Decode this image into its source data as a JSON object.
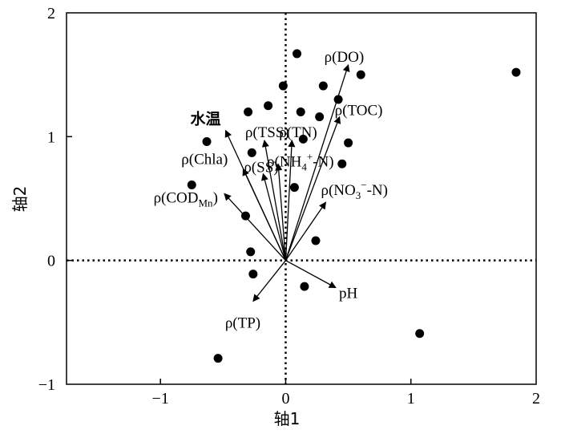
{
  "chart_data": {
    "type": "scatter",
    "title": "",
    "xlabel": "轴1",
    "ylabel": "轴2",
    "xlim": [
      -1.75,
      2.0
    ],
    "ylim": [
      -1.0,
      2.0
    ],
    "x_ticks": [
      -1,
      0,
      1,
      2
    ],
    "y_ticks": [
      -1,
      0,
      1,
      2
    ],
    "x_tick_labels": [
      "−1",
      "0",
      "1",
      "2"
    ],
    "y_tick_labels": [
      "−1",
      "0",
      "1",
      "2"
    ],
    "grid": false,
    "reference_lines": [
      "x=0 dotted",
      "y=0 dotted"
    ],
    "points": [
      {
        "x": 0.09,
        "y": 1.67
      },
      {
        "x": 1.84,
        "y": 1.52
      },
      {
        "x": 0.6,
        "y": 1.5
      },
      {
        "x": -0.02,
        "y": 1.41
      },
      {
        "x": 0.3,
        "y": 1.41
      },
      {
        "x": 0.42,
        "y": 1.3
      },
      {
        "x": -0.14,
        "y": 1.25
      },
      {
        "x": -0.3,
        "y": 1.2
      },
      {
        "x": 0.12,
        "y": 1.2
      },
      {
        "x": 0.27,
        "y": 1.16
      },
      {
        "x": -0.63,
        "y": 0.96
      },
      {
        "x": 0.14,
        "y": 0.98
      },
      {
        "x": 0.5,
        "y": 0.95
      },
      {
        "x": -0.27,
        "y": 0.87
      },
      {
        "x": 0.45,
        "y": 0.78
      },
      {
        "x": -0.75,
        "y": 0.61
      },
      {
        "x": 0.07,
        "y": 0.59
      },
      {
        "x": -0.32,
        "y": 0.36
      },
      {
        "x": 0.24,
        "y": 0.16
      },
      {
        "x": -0.28,
        "y": 0.07
      },
      {
        "x": -0.26,
        "y": -0.11
      },
      {
        "x": 0.15,
        "y": -0.21
      },
      {
        "x": 1.07,
        "y": -0.59
      },
      {
        "x": -0.54,
        "y": -0.79
      }
    ],
    "vectors": [
      {
        "name": "ρ(DO)",
        "label_main": "ρ(DO)",
        "x": 0.5,
        "y": 1.58
      },
      {
        "name": "ρ(TOC)",
        "label_main": "ρ(TOC)",
        "x": 0.43,
        "y": 1.16
      },
      {
        "name": "水温",
        "label_main": "水温",
        "x": -0.48,
        "y": 1.05
      },
      {
        "name": "ρ(TSS)",
        "label_main": "ρ(TSS)",
        "x": -0.17,
        "y": 0.97
      },
      {
        "name": "ρ(TN)",
        "label_main": "ρ(TN)",
        "x": 0.05,
        "y": 0.97
      },
      {
        "name": "ρ(NH4+-N)",
        "label_main": "ρ(NH",
        "label_sub": "4",
        "label_sup": "+",
        "label_tail": "-N)",
        "x": -0.06,
        "y": 0.78
      },
      {
        "name": "ρ(Chla)",
        "label_main": "ρ(Chla)",
        "x": -0.34,
        "y": 0.74
      },
      {
        "name": "ρ(SS)",
        "label_main": "ρ(SS)",
        "x": -0.18,
        "y": 0.7
      },
      {
        "name": "ρ(NO3−-N)",
        "label_main": "ρ(NO",
        "label_sub": "3",
        "label_sup": "−",
        "label_tail": "-N)",
        "x": 0.32,
        "y": 0.47
      },
      {
        "name": "ρ(CODMn)",
        "label_main": "ρ(COD",
        "label_sub": "Mn",
        "label_tail": ")",
        "x": -0.49,
        "y": 0.54
      },
      {
        "name": "pH",
        "label_main": "pH",
        "x": 0.4,
        "y": -0.22
      },
      {
        "name": "ρ(TP)",
        "label_main": "ρ(TP)",
        "x": -0.26,
        "y": -0.33
      }
    ]
  }
}
